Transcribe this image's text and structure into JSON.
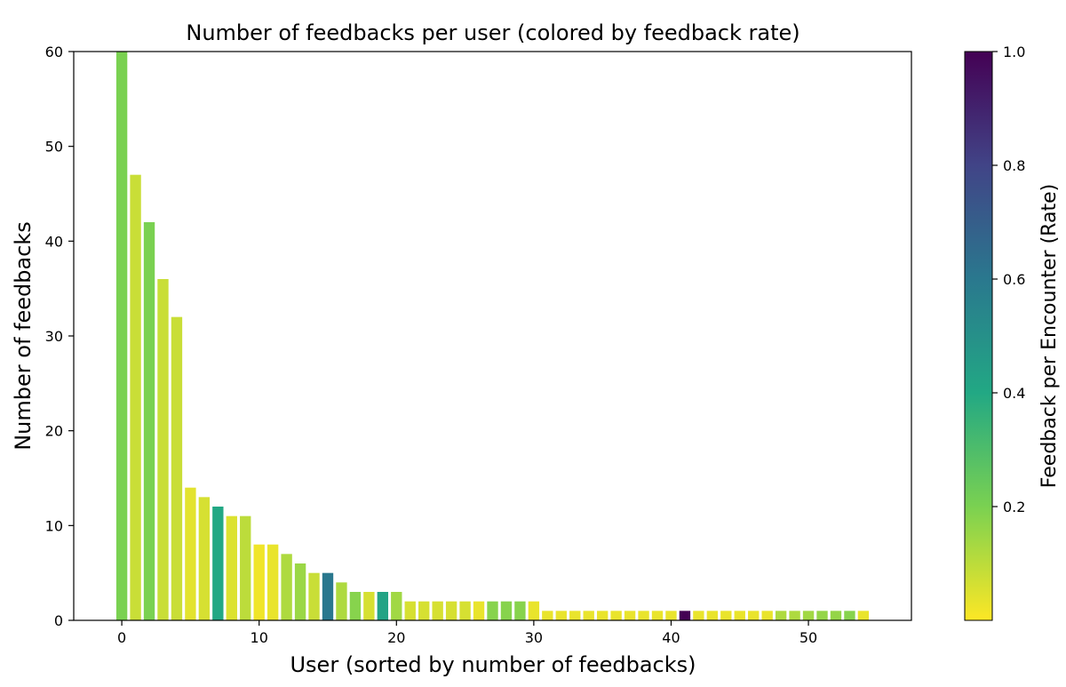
{
  "chart_data": {
    "type": "bar",
    "title": "Number of feedbacks per user (colored by feedback rate)",
    "xlabel": "User (sorted by number of feedbacks)",
    "ylabel": "Number of feedbacks",
    "xlim": [
      -3.5,
      57.5
    ],
    "ylim": [
      0,
      60
    ],
    "xticks": [
      "0",
      "10",
      "20",
      "30",
      "40",
      "50"
    ],
    "yticks": [
      "0",
      "10",
      "20",
      "30",
      "40",
      "50",
      "60"
    ],
    "x": [
      0,
      1,
      2,
      3,
      4,
      5,
      6,
      7,
      8,
      9,
      10,
      11,
      12,
      13,
      14,
      15,
      16,
      17,
      18,
      19,
      20,
      21,
      22,
      23,
      24,
      25,
      26,
      27,
      28,
      29,
      30,
      31,
      32,
      33,
      34,
      35,
      36,
      37,
      38,
      39,
      40,
      41,
      42,
      43,
      44,
      45,
      46,
      47,
      48,
      49,
      50,
      51,
      52,
      53,
      54
    ],
    "values": [
      60,
      47,
      42,
      36,
      32,
      14,
      13,
      12,
      11,
      11,
      8,
      8,
      7,
      6,
      5,
      5,
      4,
      3,
      3,
      3,
      3,
      2,
      2,
      2,
      2,
      2,
      2,
      2,
      2,
      2,
      2,
      1,
      1,
      1,
      1,
      1,
      1,
      1,
      1,
      1,
      1,
      1,
      1,
      1,
      1,
      1,
      1,
      1,
      1,
      1,
      1,
      1,
      1,
      1,
      1
    ],
    "rates": [
      0.2,
      0.08,
      0.2,
      0.08,
      0.08,
      0.04,
      0.06,
      0.4,
      0.05,
      0.1,
      0.02,
      0.03,
      0.12,
      0.15,
      0.08,
      0.6,
      0.12,
      0.18,
      0.06,
      0.42,
      0.14,
      0.06,
      0.06,
      0.06,
      0.06,
      0.06,
      0.03,
      0.18,
      0.18,
      0.18,
      0.03,
      0.03,
      0.03,
      0.03,
      0.03,
      0.03,
      0.03,
      0.03,
      0.03,
      0.03,
      0.03,
      1.0,
      0.03,
      0.03,
      0.03,
      0.03,
      0.03,
      0.03,
      0.12,
      0.12,
      0.14,
      0.16,
      0.16,
      0.18,
      0.03
    ],
    "grid": false,
    "colorbar": {
      "label": "Feedback per Encounter (Rate)",
      "range": [
        0,
        1
      ],
      "ticks": [
        "0.2",
        "0.4",
        "0.6",
        "0.8",
        "1.0"
      ],
      "tick_values": [
        0.2,
        0.4,
        0.6,
        0.8,
        1.0
      ],
      "colormap": "viridis (reversed)",
      "stops": [
        "#fde725",
        "#7ad151",
        "#22a884",
        "#2a788e",
        "#414487",
        "#440154"
      ]
    }
  }
}
